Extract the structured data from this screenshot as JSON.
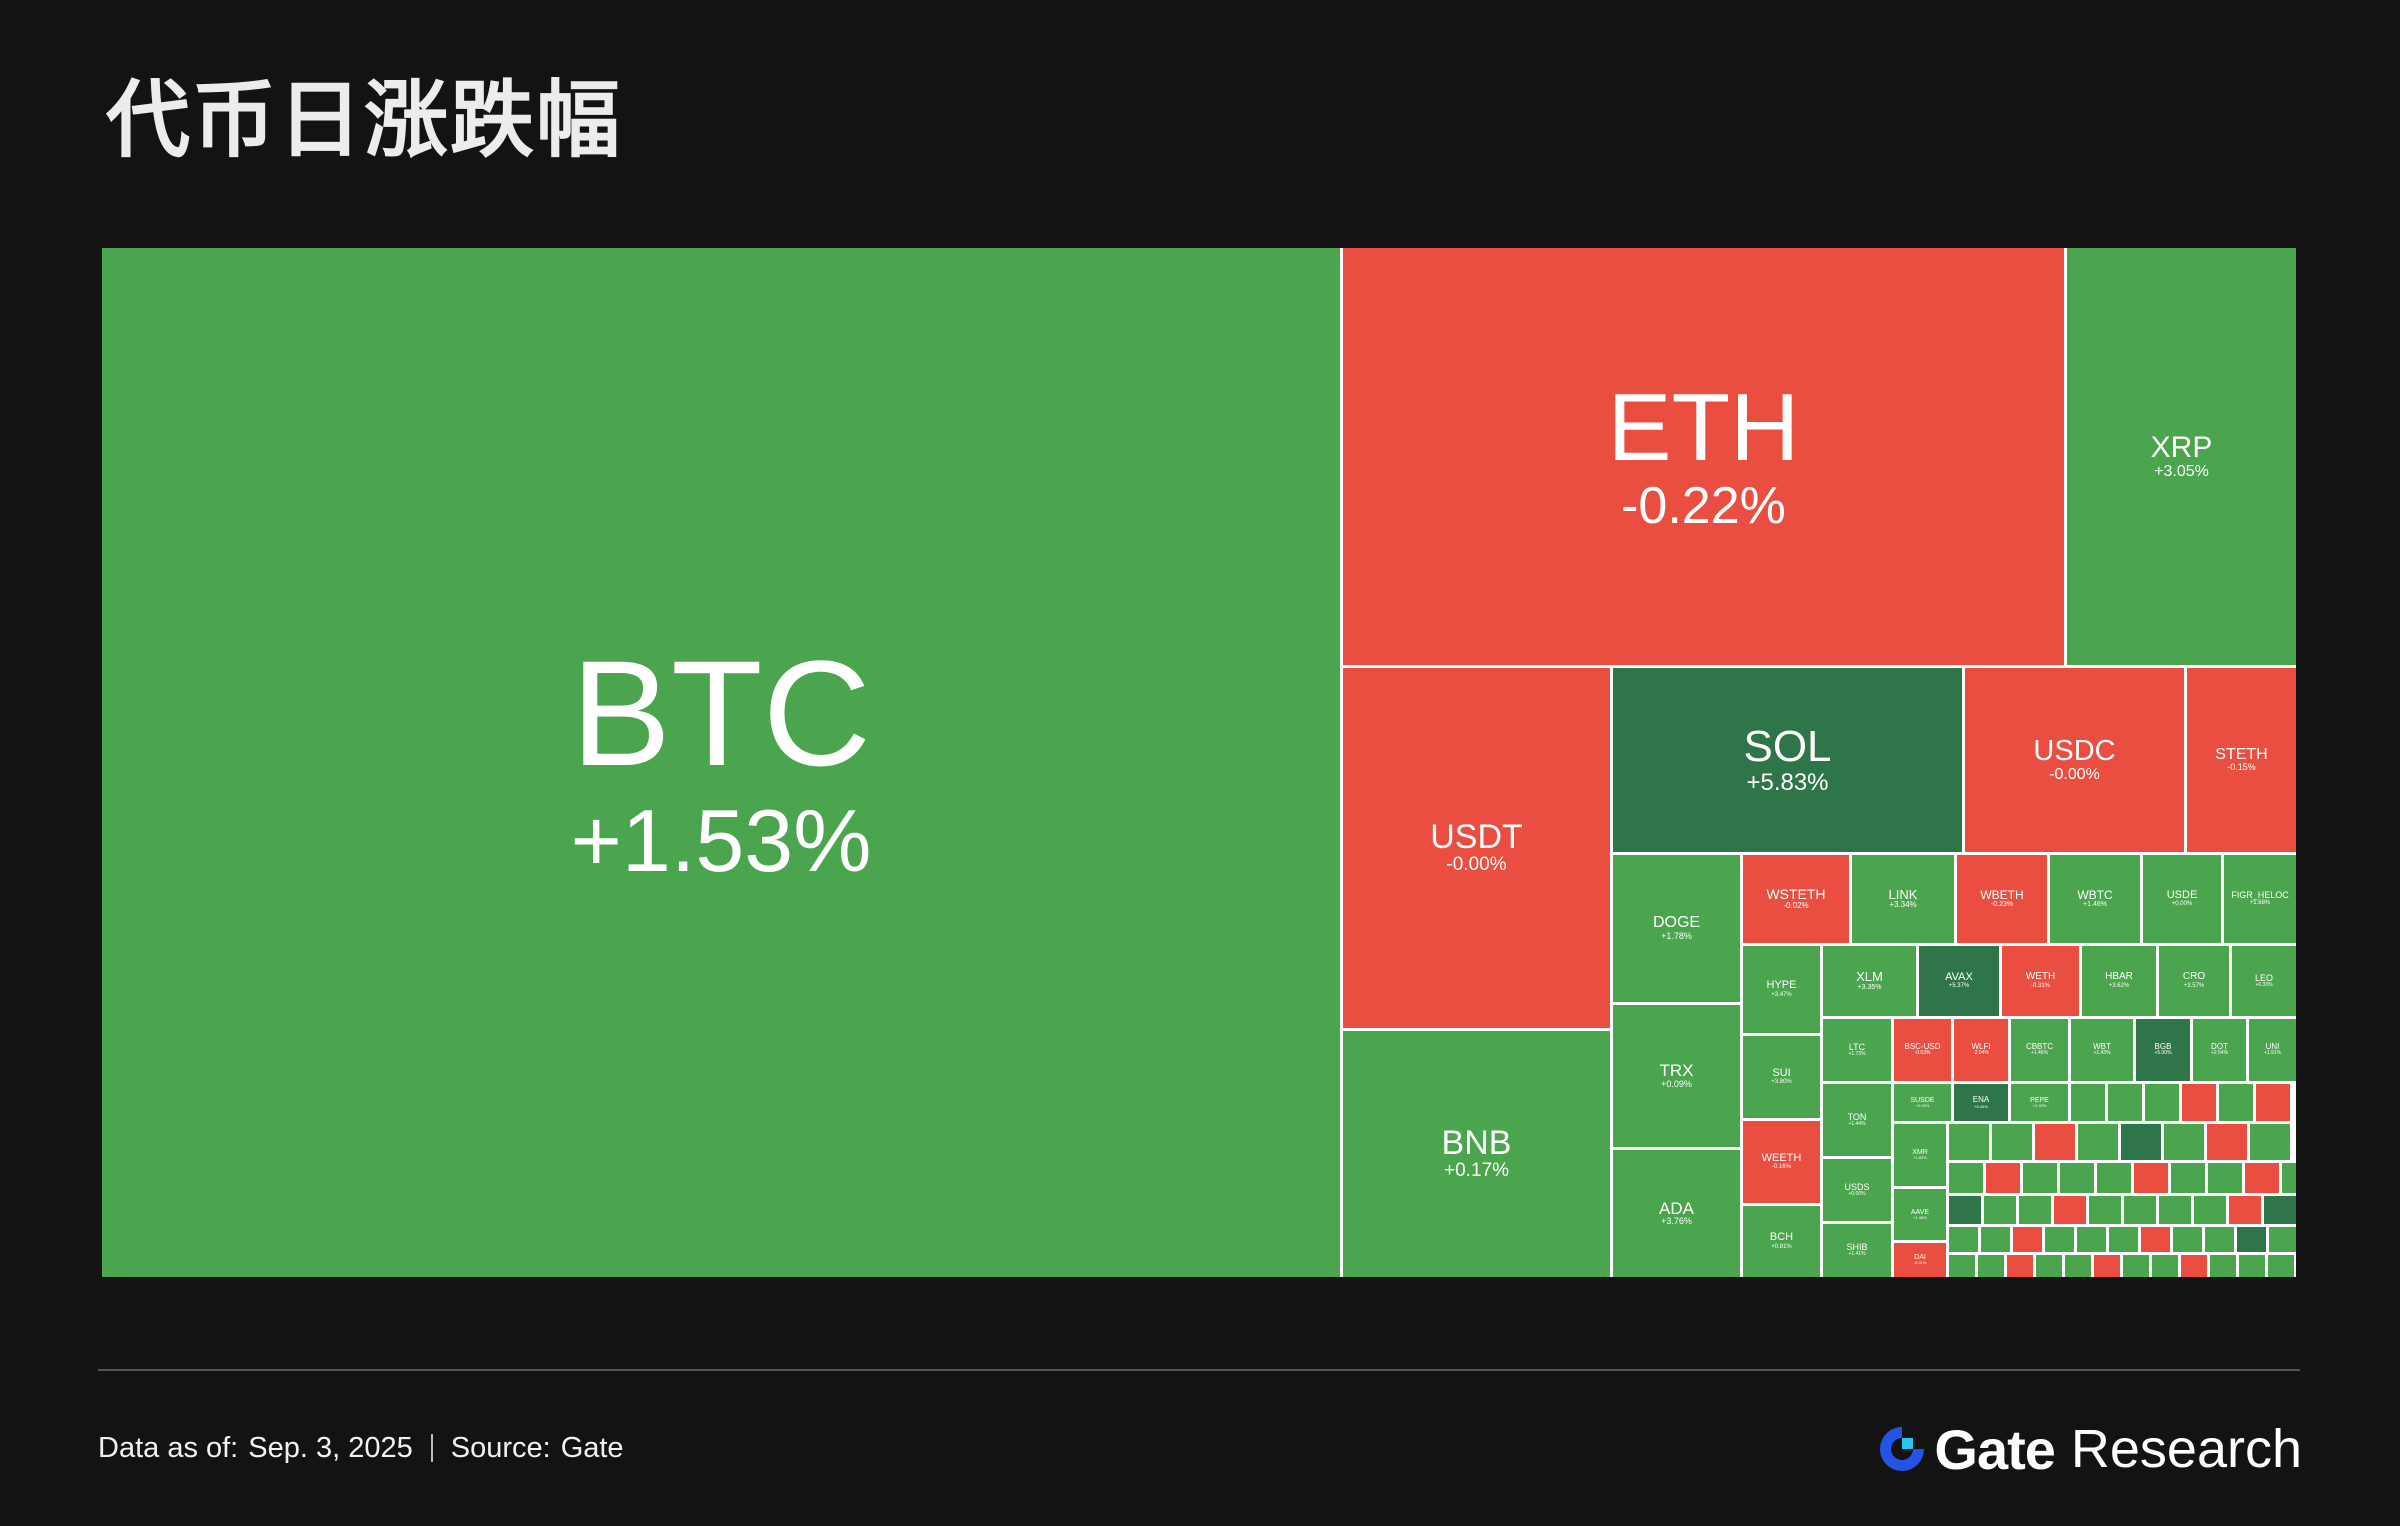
{
  "title": "代币日涨跌幅",
  "footer": {
    "data_label": "Data as of:",
    "date": "Sep. 3, 2025",
    "source_label": "Source:",
    "source": "Gate"
  },
  "brand": {
    "name": "Gate",
    "suffix": "Research",
    "logo_icon": "gate-logo-icon",
    "logo_color": "#2354e6"
  },
  "colors": {
    "up": "#4ba44e",
    "down": "#e94e41",
    "strong_up": "#2f754a",
    "background": "#131313"
  },
  "chart_data": {
    "type": "treemap",
    "title": "代币日涨跌幅",
    "tiles": [
      {
        "symbol": "BTC",
        "change": "+1.53%",
        "value": 1.53
      },
      {
        "symbol": "ETH",
        "change": "-0.22%",
        "value": -0.22
      },
      {
        "symbol": "XRP",
        "change": "+3.05%",
        "value": 3.05
      },
      {
        "symbol": "USDT",
        "change": "-0.00%",
        "value": -0.0
      },
      {
        "symbol": "BNB",
        "change": "+0.17%",
        "value": 0.17
      },
      {
        "symbol": "SOL",
        "change": "+5.83%",
        "value": 5.83
      },
      {
        "symbol": "USDC",
        "change": "-0.00%",
        "value": -0.0
      },
      {
        "symbol": "STETH",
        "change": "-0.15%",
        "value": -0.15
      },
      {
        "symbol": "DOGE",
        "change": "+1.78%",
        "value": 1.78
      },
      {
        "symbol": "TRX",
        "change": "+0.09%",
        "value": 0.09
      },
      {
        "symbol": "ADA",
        "change": "+3.76%",
        "value": 3.76
      },
      {
        "symbol": "WSTETH",
        "change": "-0.02%",
        "value": -0.02
      },
      {
        "symbol": "LINK",
        "change": "+3.34%",
        "value": 3.34
      },
      {
        "symbol": "WBETH",
        "change": "-0.23%",
        "value": -0.23
      },
      {
        "symbol": "WBTC",
        "change": "+1.46%",
        "value": 1.46
      },
      {
        "symbol": "USDE",
        "change": "+0.00%",
        "value": 0.0
      },
      {
        "symbol": "FIGR_HELOC",
        "change": "+1.68%",
        "value": 1.68
      },
      {
        "symbol": "HYPE",
        "change": "+3.47%",
        "value": 3.47
      },
      {
        "symbol": "XLM",
        "change": "+3.35%",
        "value": 3.35
      },
      {
        "symbol": "AVAX",
        "change": "+5.37%",
        "value": 5.37
      },
      {
        "symbol": "WETH",
        "change": "-0.31%",
        "value": -0.31
      },
      {
        "symbol": "HBAR",
        "change": "+3.62%",
        "value": 3.62
      },
      {
        "symbol": "CRO",
        "change": "+3.57%",
        "value": 3.57
      },
      {
        "symbol": "LEO",
        "change": "+0.33%",
        "value": 0.33
      },
      {
        "symbol": "SUI",
        "change": "+3.80%",
        "value": 3.8
      },
      {
        "symbol": "LTC",
        "change": "+1.73%",
        "value": 1.73
      },
      {
        "symbol": "BSC-USD",
        "change": "-0.03%",
        "value": -0.03
      },
      {
        "symbol": "WLFI",
        "change": "-2.04%",
        "value": -2.04
      },
      {
        "symbol": "CBBTC",
        "change": "+1.46%",
        "value": 1.46
      },
      {
        "symbol": "WBT",
        "change": "+1.43%",
        "value": 1.43
      },
      {
        "symbol": "BGB",
        "change": "+5.00%",
        "value": 5.0
      },
      {
        "symbol": "DOT",
        "change": "+2.54%",
        "value": 2.54
      },
      {
        "symbol": "UNI",
        "change": "+1.91%",
        "value": 1.91
      },
      {
        "symbol": "TON",
        "change": "+1.44%",
        "value": 1.44
      },
      {
        "symbol": "WEETH",
        "change": "-0.16%",
        "value": -0.16
      },
      {
        "symbol": "USDS",
        "change": "+0.00%",
        "value": 0.0
      },
      {
        "symbol": "BCH",
        "change": "+0.81%",
        "value": 0.81
      },
      {
        "symbol": "SHIB",
        "change": "+1.41%",
        "value": 1.41
      },
      {
        "symbol": "SUSDE",
        "change": "+0.00%",
        "value": 0.0
      },
      {
        "symbol": "ENA",
        "change": "+5.43%",
        "value": 5.43
      },
      {
        "symbol": "PEPE",
        "change": "+2.33%",
        "value": 2.33
      },
      {
        "symbol": "XMR",
        "change": "+1.82%",
        "value": 1.82
      },
      {
        "symbol": "AAVE",
        "change": "+1.34%",
        "value": 1.34
      },
      {
        "symbol": "DAI",
        "change": "-0.01%",
        "value": -0.01
      }
    ],
    "small_tiles": {
      "count": 90,
      "pattern": "gggrgrggrgdgrggrgggrggrgdggrggggrdggrgggrggdgggrggrggrgggdgrggggrggrgdggggrgrggggrggdggrgg"
    }
  }
}
